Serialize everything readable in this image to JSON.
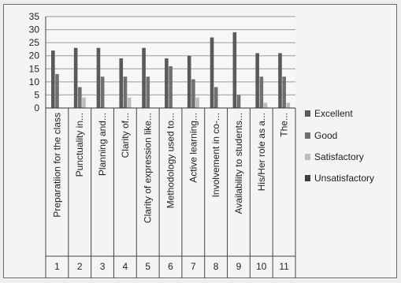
{
  "chart_data": {
    "type": "bar",
    "ylim": [
      0,
      35
    ],
    "yticks": [
      0,
      5,
      10,
      15,
      20,
      25,
      30,
      35
    ],
    "grid": true,
    "legend_position": "right",
    "categories": [
      "1",
      "2",
      "3",
      "4",
      "5",
      "6",
      "7",
      "8",
      "9",
      "10",
      "11"
    ],
    "category_labels": [
      "Preparatiion for the class",
      "Punctuality in...",
      "Planning and...",
      "Clarity of...",
      "Clarity of expression like...",
      "Methodology used to...",
      "Active learning...",
      "Involvement in co-...",
      "Availability to students...",
      "His/Her role as a...",
      "The..."
    ],
    "series": [
      {
        "name": "Excellent",
        "color": "#5a5a5a",
        "values": [
          22,
          23,
          23,
          19,
          23,
          19,
          20,
          27,
          29,
          21,
          21
        ]
      },
      {
        "name": "Good",
        "color": "#707070",
        "values": [
          13,
          8,
          12,
          12,
          12,
          16,
          11,
          8,
          5,
          12,
          12
        ]
      },
      {
        "name": "Satisfactory",
        "color": "#bdbdbd",
        "values": [
          0,
          4,
          0,
          4,
          0,
          0,
          4,
          0,
          0,
          2,
          2
        ]
      },
      {
        "name": "Unsatisfactory",
        "color": "#3f3f3f",
        "values": [
          0,
          0,
          0,
          0,
          0,
          0,
          0,
          0,
          0,
          0,
          0
        ]
      }
    ]
  }
}
